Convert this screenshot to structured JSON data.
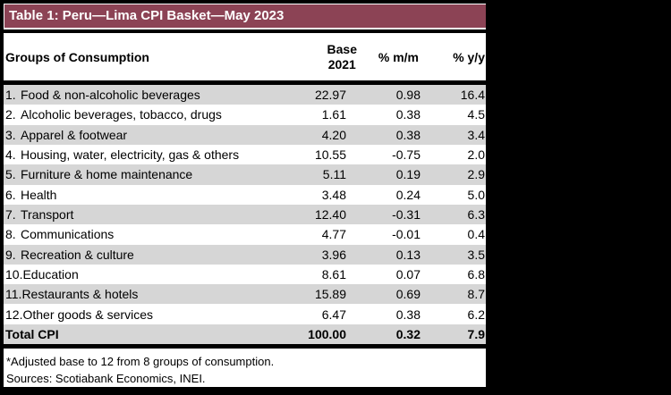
{
  "title": "Table 1: Peru—Lima CPI Basket—May 2023",
  "columns": {
    "groups": "Groups of Consumption",
    "base_line1": "Base",
    "base_line2": "2021",
    "mm": "% m/m",
    "yy": "% y/y"
  },
  "rows": [
    {
      "num": "1.",
      "label": "Food & non-alcoholic beverages",
      "base": "22.97",
      "mm": "0.98",
      "yy": "16.4"
    },
    {
      "num": "2.",
      "label": "Alcoholic beverages, tobacco, drugs",
      "base": "1.61",
      "mm": "0.38",
      "yy": "4.5"
    },
    {
      "num": "3.",
      "label": "Apparel & footwear",
      "base": "4.20",
      "mm": "0.38",
      "yy": "3.4"
    },
    {
      "num": "4.",
      "label": "Housing, water, electricity, gas & others",
      "base": "10.55",
      "mm": "-0.75",
      "yy": "2.0"
    },
    {
      "num": "5.",
      "label": "Furniture & home maintenance",
      "base": "5.11",
      "mm": "0.19",
      "yy": "2.9"
    },
    {
      "num": "6.",
      "label": "Health",
      "base": "3.48",
      "mm": "0.24",
      "yy": "5.0"
    },
    {
      "num": "7.",
      "label": "Transport",
      "base": "12.40",
      "mm": "-0.31",
      "yy": "6.3"
    },
    {
      "num": "8.",
      "label": "Communications",
      "base": "4.77",
      "mm": "-0.01",
      "yy": "0.4"
    },
    {
      "num": "9.",
      "label": "Recreation & culture",
      "base": "3.96",
      "mm": "0.13",
      "yy": "3.5"
    },
    {
      "num": "10.",
      "label": "Education",
      "base": "8.61",
      "mm": "0.07",
      "yy": "6.8"
    },
    {
      "num": "11.",
      "label": "Restaurants & hotels",
      "base": "15.89",
      "mm": "0.69",
      "yy": "8.7"
    },
    {
      "num": "12.",
      "label": "Other goods & services",
      "base": "6.47",
      "mm": "0.38",
      "yy": "6.2"
    }
  ],
  "total": {
    "label": "Total CPI",
    "base": "100.00",
    "mm": "0.32",
    "yy": "7.9"
  },
  "footnotes": [
    "*Adjusted base to 12 from 8 groups of consumption.",
    "Sources: Scotiabank Economics, INEI."
  ],
  "colors": {
    "title_bar": "#8c4355",
    "row_stripe": "#d6d6d6",
    "border": "#000000"
  },
  "chart_data": {
    "type": "table",
    "title": "Table 1: Peru—Lima CPI Basket—May 2023",
    "columns": [
      "Groups of Consumption",
      "Base 2021",
      "% m/m",
      "% y/y"
    ],
    "rows": [
      [
        "1. Food & non-alcoholic beverages",
        22.97,
        0.98,
        16.4
      ],
      [
        "2. Alcoholic beverages, tobacco, drugs",
        1.61,
        0.38,
        4.5
      ],
      [
        "3. Apparel & footwear",
        4.2,
        0.38,
        3.4
      ],
      [
        "4. Housing, water, electricity, gas & others",
        10.55,
        -0.75,
        2.0
      ],
      [
        "5. Furniture & home maintenance",
        5.11,
        0.19,
        2.9
      ],
      [
        "6. Health",
        3.48,
        0.24,
        5.0
      ],
      [
        "7. Transport",
        12.4,
        -0.31,
        6.3
      ],
      [
        "8. Communications",
        4.77,
        -0.01,
        0.4
      ],
      [
        "9. Recreation & culture",
        3.96,
        0.13,
        3.5
      ],
      [
        "10. Education",
        8.61,
        0.07,
        6.8
      ],
      [
        "11. Restaurants & hotels",
        15.89,
        0.69,
        8.7
      ],
      [
        "12. Other goods & services",
        6.47,
        0.38,
        6.2
      ]
    ],
    "total_row": [
      "Total CPI",
      100.0,
      0.32,
      7.9
    ],
    "footnotes": [
      "*Adjusted base to 12 from 8 groups of consumption.",
      "Sources: Scotiabank Economics, INEI."
    ]
  }
}
